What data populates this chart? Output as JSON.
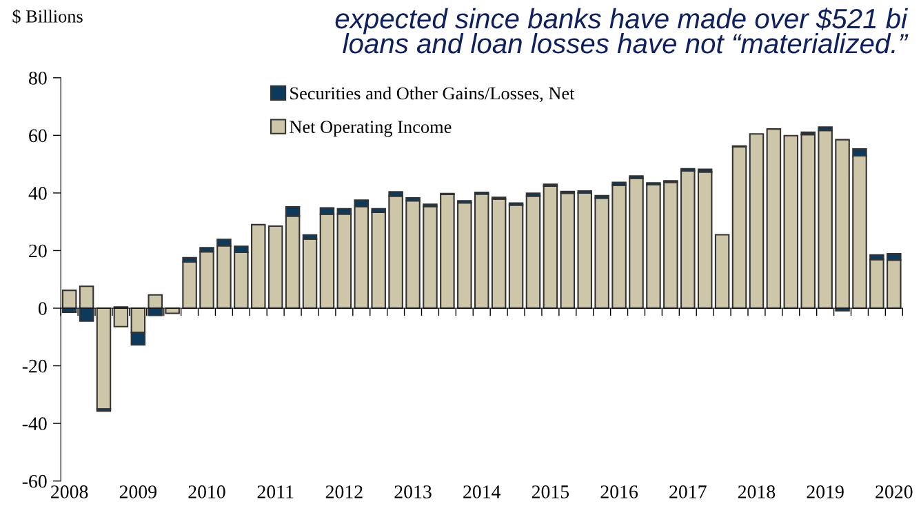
{
  "chart_data": {
    "type": "bar",
    "stacked": true,
    "title": "expected since banks have made over $521 bi\nloans and loan losses have not “materialized.”",
    "ylabel": "$ Billions",
    "categories": [
      "2008",
      null,
      null,
      null,
      "2009",
      null,
      null,
      null,
      "2010",
      null,
      null,
      null,
      "2011",
      null,
      null,
      null,
      "2012",
      null,
      null,
      null,
      "2013",
      null,
      null,
      null,
      "2014",
      null,
      null,
      null,
      "2015",
      null,
      null,
      null,
      "2016",
      null,
      null,
      null,
      "2017",
      null,
      null,
      null,
      "2018",
      null,
      null,
      null,
      "2019",
      null,
      null,
      null,
      "2020"
    ],
    "series": [
      {
        "name": "Net Operating Income",
        "color": "#cec6a8",
        "values": [
          6.2,
          7.6,
          -35.0,
          -6.4,
          -8.4,
          4.6,
          -1.8,
          16.1,
          19.6,
          21.7,
          19.4,
          29.0,
          28.5,
          32.0,
          24.0,
          32.6,
          32.7,
          35.3,
          33.3,
          38.9,
          37.3,
          35.3,
          39.5,
          36.6,
          39.6,
          37.9,
          35.8,
          38.9,
          42.4,
          39.9,
          40.0,
          38.2,
          42.7,
          45.1,
          42.9,
          43.7,
          47.7,
          47.3,
          25.5,
          56.0,
          60.5,
          62.2,
          59.9,
          60.3,
          61.7,
          58.5,
          52.9,
          16.9,
          16.7
        ]
      },
      {
        "name": "Securities and Other Gains/Losses, Net",
        "color": "#0c3a5c",
        "values": [
          -1.4,
          -4.5,
          -0.7,
          0.4,
          -4.3,
          -2.5,
          null,
          1.4,
          1.4,
          2.2,
          2.1,
          null,
          null,
          3.2,
          1.4,
          2.2,
          1.8,
          2.2,
          1.2,
          1.5,
          1.0,
          0.8,
          0.3,
          0.7,
          0.6,
          0.6,
          0.7,
          1.0,
          0.6,
          0.6,
          0.7,
          0.9,
          1.0,
          0.8,
          0.6,
          0.5,
          0.7,
          0.9,
          null,
          0.3,
          null,
          null,
          null,
          0.8,
          1.2,
          -0.9,
          2.4,
          1.6,
          2.2
        ]
      }
    ],
    "ylim": [
      -60,
      80
    ],
    "yticks": [
      -60,
      -40,
      -20,
      0,
      20,
      40,
      60,
      80
    ],
    "legend": "top"
  }
}
